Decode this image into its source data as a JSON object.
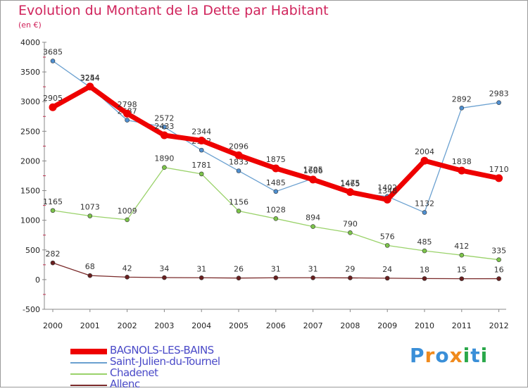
{
  "title": "Evolution du Montant de la Dette par Habitant",
  "subtitle": "(en €)",
  "logo": {
    "letters": [
      "P",
      "r",
      "o",
      "x",
      "i",
      "t",
      "i"
    ],
    "colors": [
      "#3a8fd8",
      "#f08a1c",
      "#3a8fd8",
      "#f08a1c",
      "#2aa84a",
      "#3a8fd8",
      "#2aa84a"
    ]
  },
  "chart_data": {
    "type": "line",
    "title": "Evolution du Montant de la Dette par Habitant",
    "subtitle": "(en €)",
    "x": [
      "2000",
      "2001",
      "2002",
      "2003",
      "2004",
      "2005",
      "2006",
      "2007",
      "2008",
      "2009",
      "2010",
      "2011",
      "2012"
    ],
    "ylim": [
      -500,
      4000
    ],
    "yticks": [
      "-500",
      "0",
      "500",
      "1000",
      "1500",
      "2000",
      "2500",
      "3000",
      "3500",
      "4000"
    ],
    "ytick_values": [
      -500,
      0,
      500,
      1000,
      1500,
      2000,
      2500,
      3000,
      3500,
      4000
    ],
    "grid": false,
    "legend_position": "bottom-left",
    "series": [
      {
        "name": "Saint-Julien-du-Tournel",
        "color": "#6aa0d0",
        "marker": "#4f8fd0",
        "width": 1.3,
        "values": [
          3685,
          3244,
          2687,
          2572,
          2182,
          1833,
          1485,
          1705,
          1465,
          1402,
          1132,
          2892,
          2983
        ],
        "labels": [
          "3685",
          "3244",
          "2687",
          "2572",
          "2182",
          "1833",
          "1485",
          "1705",
          "1465",
          "1402",
          "1132",
          "2892",
          "2983"
        ]
      },
      {
        "name": "Chadenet",
        "color": "#9ad26a",
        "marker": "#7cc44a",
        "width": 1.3,
        "values": [
          1165,
          1073,
          1009,
          1890,
          1781,
          1156,
          1028,
          894,
          790,
          576,
          485,
          412,
          335
        ],
        "labels": [
          "1165",
          "1073",
          "1009",
          "1890",
          "1781",
          "1156",
          "1028",
          "894",
          "790",
          "576",
          "485",
          "412",
          "335"
        ]
      },
      {
        "name": "Allenc",
        "color": "#7a2a2a",
        "marker": "#6a1f1f",
        "width": 1.3,
        "values": [
          282,
          68,
          42,
          34,
          31,
          26,
          31,
          31,
          29,
          24,
          18,
          15,
          16
        ],
        "labels": [
          "282",
          "68",
          "42",
          "34",
          "31",
          "26",
          "31",
          "31",
          "29",
          "24",
          "18",
          "15",
          "16"
        ]
      },
      {
        "name": "BAGNOLS-LES-BAINS",
        "color": "#ee0000",
        "marker": "#ee0000",
        "width": 7,
        "values": [
          2905,
          3254,
          2798,
          2433,
          2344,
          2096,
          1875,
          1686,
          1475,
          1348,
          2004,
          1838,
          1710
        ],
        "labels": [
          "2905",
          "3254",
          "2798",
          "2433",
          "2344",
          "2096",
          "1875",
          "1686",
          "1475",
          "1348",
          "2004",
          "1838",
          "1710"
        ]
      }
    ],
    "legend": [
      {
        "name": "BAGNOLS-LES-BAINS",
        "color": "#ee0000",
        "thickness": 8
      },
      {
        "name": "Saint-Julien-du-Tournel",
        "color": "#6aa0d0",
        "thickness": 2
      },
      {
        "name": "Chadenet",
        "color": "#9ad26a",
        "thickness": 2
      },
      {
        "name": "Allenc",
        "color": "#7a2a2a",
        "thickness": 2
      }
    ]
  }
}
